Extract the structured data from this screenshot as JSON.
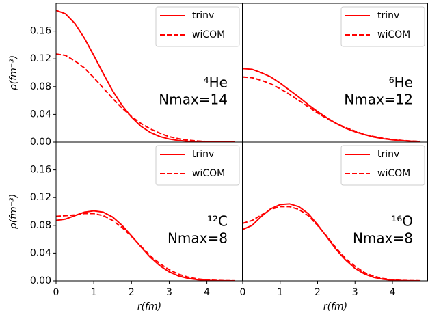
{
  "chart_data": [
    {
      "type": "line",
      "legend": "upper right",
      "ylabel": "ρ(fm⁻³)",
      "annotations": [
        "⁴He",
        "Nmax=14"
      ],
      "xlim": [
        0,
        4.95
      ],
      "ylim": [
        0,
        0.2
      ],
      "yticks": [
        {
          "value": 0,
          "label": "0.00"
        },
        {
          "value": 0.04,
          "label": "0.04"
        },
        {
          "value": 0.08,
          "label": "0.08"
        },
        {
          "value": 0.12,
          "label": "0.12"
        },
        {
          "value": 0.16,
          "label": "0.16"
        }
      ],
      "x": [
        0,
        0.25,
        0.5,
        0.75,
        1,
        1.25,
        1.5,
        1.75,
        2,
        2.25,
        2.5,
        2.75,
        3,
        3.25,
        3.5,
        3.75,
        4,
        4.25,
        4.5,
        4.75
      ],
      "series": [
        {
          "name": "trinv",
          "color": "#ff0000",
          "linestyle": "solid",
          "values": [
            0.19,
            0.185,
            0.171,
            0.15,
            0.125,
            0.099,
            0.074,
            0.053,
            0.036,
            0.023,
            0.014,
            0.0081,
            0.0045,
            0.0023,
            0.0012,
            0.0005,
            0.0002,
            0.0001,
            0,
            0
          ]
        },
        {
          "name": "wiCOM",
          "color": "#ff0000",
          "linestyle": "dashed",
          "values": [
            0.127,
            0.125,
            0.117,
            0.107,
            0.093,
            0.078,
            0.063,
            0.049,
            0.037,
            0.027,
            0.019,
            0.013,
            0.0079,
            0.0049,
            0.0029,
            0.0016,
            0.0009,
            0.0004,
            0.0002,
            0.0001
          ]
        }
      ]
    },
    {
      "type": "line",
      "legend": "upper right",
      "annotations": [
        "⁶He",
        "Nmax=12"
      ],
      "xlim": [
        0,
        4.95
      ],
      "ylim": [
        0,
        0.2
      ],
      "x": [
        0,
        0.25,
        0.5,
        0.75,
        1,
        1.25,
        1.5,
        1.75,
        2,
        2.25,
        2.5,
        2.75,
        3,
        3.25,
        3.5,
        3.75,
        4,
        4.25,
        4.5,
        4.75
      ],
      "series": [
        {
          "name": "trinv",
          "color": "#ff0000",
          "linestyle": "solid",
          "values": [
            0.106,
            0.105,
            0.1,
            0.094,
            0.085,
            0.075,
            0.065,
            0.054,
            0.044,
            0.035,
            0.027,
            0.02,
            0.015,
            0.011,
            0.0074,
            0.005,
            0.0033,
            0.0021,
            0.0013,
            0.0008
          ]
        },
        {
          "name": "wiCOM",
          "color": "#ff0000",
          "linestyle": "dashed",
          "values": [
            0.094,
            0.093,
            0.089,
            0.084,
            0.077,
            0.069,
            0.06,
            0.051,
            0.042,
            0.034,
            0.027,
            0.021,
            0.016,
            0.011,
            0.0081,
            0.0056,
            0.0038,
            0.0025,
            0.0016,
            0.001
          ]
        }
      ]
    },
    {
      "type": "line",
      "legend": "upper right",
      "ylabel": "ρ(fm⁻³)",
      "xlabel": "r(fm)",
      "annotations": [
        "¹²C",
        "Nmax=8"
      ],
      "xlim": [
        0,
        4.95
      ],
      "ylim": [
        0,
        0.2
      ],
      "xticks": [
        0,
        1,
        2,
        3,
        4
      ],
      "yticks": [
        {
          "value": 0,
          "label": "0.00"
        },
        {
          "value": 0.04,
          "label": "0.04"
        },
        {
          "value": 0.08,
          "label": "0.08"
        },
        {
          "value": 0.12,
          "label": "0.12"
        },
        {
          "value": 0.16,
          "label": "0.16"
        }
      ],
      "x": [
        0,
        0.25,
        0.5,
        0.75,
        1,
        1.25,
        1.5,
        1.75,
        2,
        2.25,
        2.5,
        2.75,
        3,
        3.25,
        3.5,
        3.75,
        4,
        4.25,
        4.5,
        4.75
      ],
      "series": [
        {
          "name": "trinv",
          "color": "#ff0000",
          "linestyle": "solid",
          "values": [
            0.087,
            0.089,
            0.094,
            0.099,
            0.101,
            0.099,
            0.092,
            0.08,
            0.065,
            0.049,
            0.034,
            0.022,
            0.013,
            0.007,
            0.0036,
            0.0017,
            0.0008,
            0.0003,
            0.0001,
            0
          ]
        },
        {
          "name": "wiCOM",
          "color": "#ff0000",
          "linestyle": "dashed",
          "values": [
            0.093,
            0.094,
            0.095,
            0.097,
            0.097,
            0.094,
            0.087,
            0.077,
            0.064,
            0.05,
            0.036,
            0.025,
            0.016,
            0.0095,
            0.0053,
            0.0028,
            0.0014,
            0.0007,
            0.0003,
            0.0001
          ]
        }
      ]
    },
    {
      "type": "line",
      "legend": "upper right",
      "xlabel": "r(fm)",
      "annotations": [
        "¹⁶O",
        "Nmax=8"
      ],
      "xlim": [
        0,
        4.95
      ],
      "ylim": [
        0,
        0.2
      ],
      "xticks": [
        0,
        1,
        2,
        3,
        4
      ],
      "x": [
        0,
        0.25,
        0.5,
        0.75,
        1,
        1.25,
        1.5,
        1.75,
        2,
        2.25,
        2.5,
        2.75,
        3,
        3.25,
        3.5,
        3.75,
        4,
        4.25,
        4.5,
        4.75
      ],
      "series": [
        {
          "name": "trinv",
          "color": "#ff0000",
          "linestyle": "solid",
          "values": [
            0.074,
            0.08,
            0.093,
            0.104,
            0.11,
            0.111,
            0.107,
            0.097,
            0.081,
            0.063,
            0.045,
            0.03,
            0.018,
            0.01,
            0.005,
            0.0023,
            0.001,
            0.0004,
            0.0001,
            0
          ]
        },
        {
          "name": "wiCOM",
          "color": "#ff0000",
          "linestyle": "dashed",
          "values": [
            0.083,
            0.087,
            0.095,
            0.103,
            0.107,
            0.107,
            0.103,
            0.094,
            0.08,
            0.064,
            0.047,
            0.032,
            0.021,
            0.012,
            0.0066,
            0.0033,
            0.0015,
            0.0007,
            0.0003,
            0.0001
          ]
        }
      ]
    }
  ]
}
